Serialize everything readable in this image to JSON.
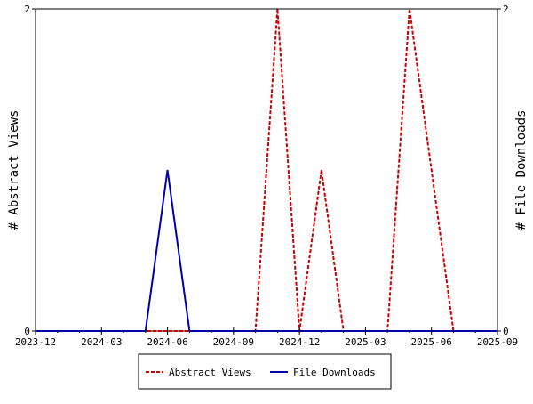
{
  "chart_data": {
    "type": "line",
    "x_tick_labels": [
      "2023-12",
      "2024-03",
      "2024-06",
      "2024-09",
      "2024-12",
      "2025-03",
      "2025-06",
      "2025-09"
    ],
    "x_range": [
      "2023-12",
      "2025-09"
    ],
    "x": [
      "2023-12",
      "2024-01",
      "2024-02",
      "2024-03",
      "2024-04",
      "2024-05",
      "2024-06",
      "2024-07",
      "2024-08",
      "2024-09",
      "2024-10",
      "2024-11",
      "2024-12",
      "2025-01",
      "2025-02",
      "2025-03",
      "2025-04",
      "2025-05",
      "2025-06",
      "2025-07",
      "2025-08",
      "2025-09"
    ],
    "y_left_label": "# Abstract Views",
    "y_right_label": "# File Downloads",
    "y_left_range": [
      0,
      2
    ],
    "y_right_range": [
      0,
      2
    ],
    "y_left_ticks": [
      "0",
      "2"
    ],
    "y_right_ticks": [
      "0",
      "2"
    ],
    "grid": false,
    "legend_position": "bottom",
    "series": [
      {
        "name": "Abstract Views",
        "axis": "left",
        "color": "#cc0000",
        "style": "dashed",
        "values": [
          0,
          0,
          0,
          0,
          0,
          0,
          0,
          0,
          0,
          0,
          0,
          2,
          0,
          1,
          0,
          0,
          0,
          2,
          1,
          0,
          0,
          0
        ]
      },
      {
        "name": "File Downloads",
        "axis": "right",
        "color": "#0000aa",
        "style": "solid",
        "values": [
          0,
          0,
          0,
          0,
          0,
          0,
          1,
          0,
          0,
          0,
          0,
          0,
          0,
          0,
          0,
          0,
          0,
          0,
          0,
          0,
          0,
          0
        ]
      }
    ]
  }
}
